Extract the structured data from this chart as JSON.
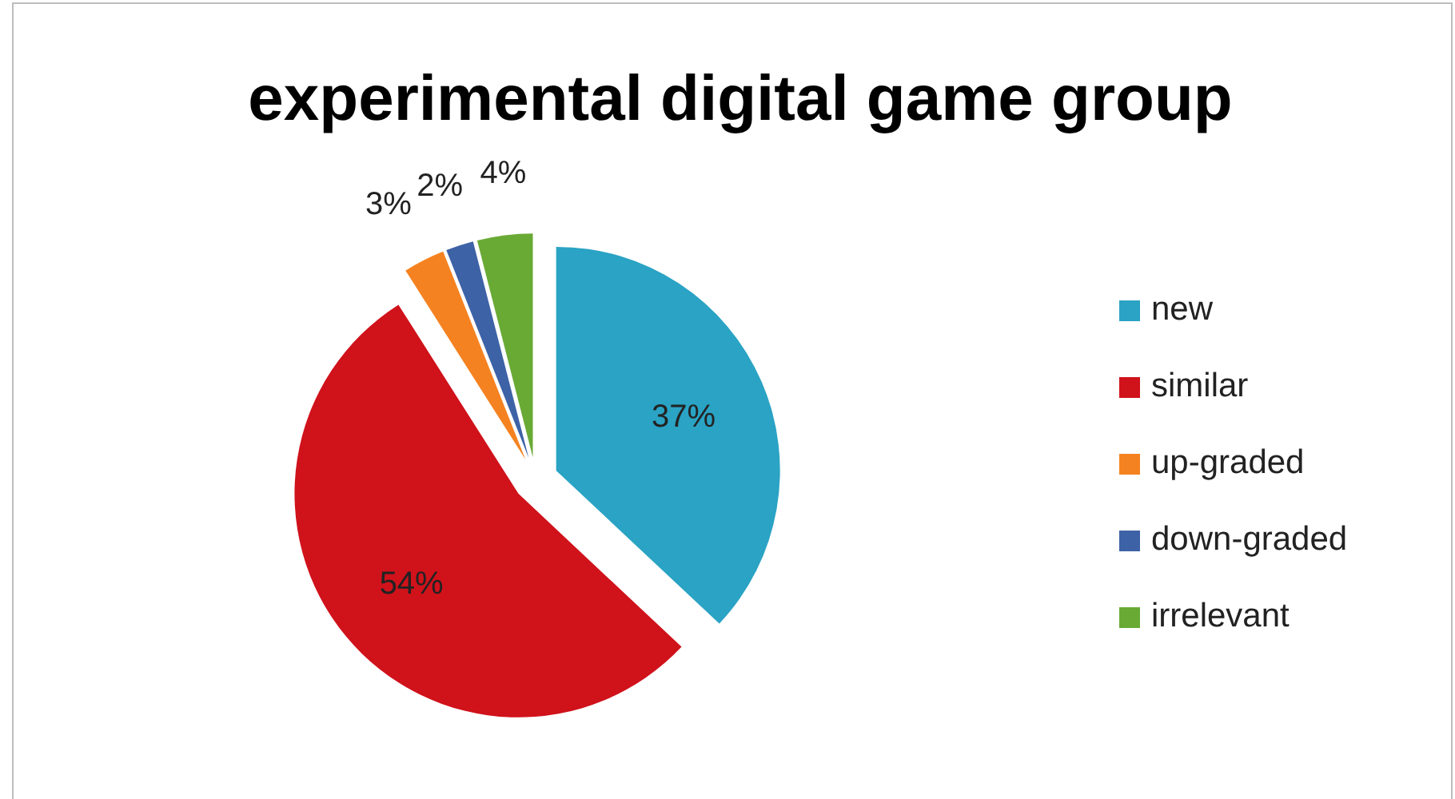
{
  "chart_data": {
    "type": "pie",
    "title": "experimental digital game group",
    "categories": [
      "new",
      "similar",
      "up-graded",
      "down-graded",
      "irrelevant"
    ],
    "values": [
      37,
      54,
      3,
      2,
      4
    ],
    "value_labels": [
      "37%",
      "54%",
      "3%",
      "2%",
      "4%"
    ],
    "colors": [
      "#2aa3c4",
      "#d0121b",
      "#f58220",
      "#3d62a6",
      "#69aa35"
    ],
    "legend": "right"
  }
}
